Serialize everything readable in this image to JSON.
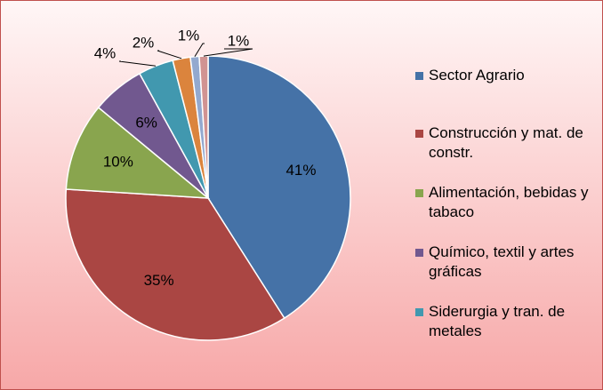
{
  "chart_data": {
    "type": "pie",
    "categories": [
      "Sector Agrario",
      "Construcción y mat. de constr.",
      "Alimentación, bebidas y tabaco",
      "Químico, textil y artes gráficas",
      "Siderurgia y tran. de metales",
      null,
      null,
      null
    ],
    "values": [
      41,
      35,
      10,
      6,
      4,
      2,
      1,
      1
    ],
    "value_labels": [
      "41%",
      "35%",
      "10%",
      "6%",
      "4%",
      "2%",
      "1%",
      "1%"
    ],
    "colors": [
      "#4572a7",
      "#aa4643",
      "#89a54e",
      "#71588f",
      "#4198af",
      "#db843d",
      "#93a9cf",
      "#d19392"
    ],
    "legend": "right"
  }
}
